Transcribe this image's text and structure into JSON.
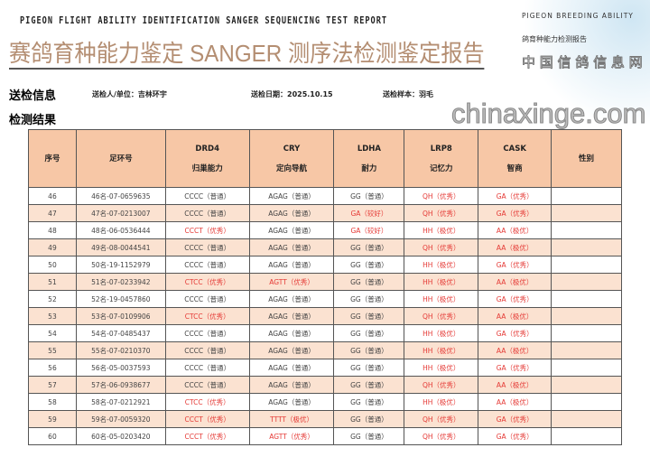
{
  "header": {
    "en_title": "PIGEON FLIGHT ABILITY IDENTIFICATION SANGER SEQUENCING TEST REPORT",
    "side_en": "PIGEON BREEDING ABILITY",
    "side_cn": "鸽育种能力检测报告",
    "title": "赛鸽育种能力鉴定 SANGER 测序法检测鉴定报告"
  },
  "info": {
    "heading": "送检信息",
    "submitter": "送检人/单位：吉林环宇",
    "date": "送检日期：2025.10.15",
    "sample": "送检样本：羽毛"
  },
  "results_heading": "检测结果",
  "table": {
    "headers": [
      {
        "top": "序号",
        "sub": ""
      },
      {
        "top": "足环号",
        "sub": ""
      },
      {
        "top": "DRD4",
        "sub": "归巢能力"
      },
      {
        "top": "CRY",
        "sub": "定向导航"
      },
      {
        "top": "LDHA",
        "sub": "耐力"
      },
      {
        "top": "LRP8",
        "sub": "记忆力"
      },
      {
        "top": "CASK",
        "sub": "智商"
      },
      {
        "top": "性别",
        "sub": ""
      }
    ],
    "rows": [
      [
        "46",
        "46名-07-0659635",
        "CCCC（普通）",
        "AGAG（普通）",
        "GG（普通）",
        "QH（优秀）",
        "GA（优秀）",
        ""
      ],
      [
        "47",
        "47名-07-0213007",
        "CCCC（普通）",
        "AGAG（普通）",
        "GA（较好）",
        "QH（优秀）",
        "GA（优秀）",
        ""
      ],
      [
        "48",
        "48名-06-0536444",
        "CCCT（优秀）",
        "AGAG（普通）",
        "GA（较好）",
        "HH（极优）",
        "AA（极优）",
        ""
      ],
      [
        "49",
        "49名-08-0044541",
        "CCCC（普通）",
        "AGAG（普通）",
        "GG（普通）",
        "QH（优秀）",
        "AA（极优）",
        ""
      ],
      [
        "50",
        "50名-19-1152979",
        "CCCC（普通）",
        "AGAG（普通）",
        "GG（普通）",
        "HH（极优）",
        "GA（优秀）",
        ""
      ],
      [
        "51",
        "51名-07-0233942",
        "CTCC（优秀）",
        "AGTT（优秀）",
        "GG（普通）",
        "HH（极优）",
        "AA（极优）",
        ""
      ],
      [
        "52",
        "52名-19-0457860",
        "CCCC（普通）",
        "AGAG（普通）",
        "GG（普通）",
        "HH（极优）",
        "GA（优秀）",
        ""
      ],
      [
        "53",
        "53名-07-0109906",
        "CTCC（优秀）",
        "AGAG（普通）",
        "GG（普通）",
        "QH（优秀）",
        "AA（极优）",
        ""
      ],
      [
        "54",
        "54名-07-0485437",
        "CCCC（普通）",
        "AGAG（普通）",
        "GG（普通）",
        "HH（极优）",
        "GA（优秀）",
        ""
      ],
      [
        "55",
        "55名-07-0210370",
        "CCCC（普通）",
        "AGAG（普通）",
        "GG（普通）",
        "HH（极优）",
        "AA（极优）",
        ""
      ],
      [
        "56",
        "56名-05-0037593",
        "CCCC（普通）",
        "AGAG（普通）",
        "GG（普通）",
        "HH（极优）",
        "GA（优秀）",
        ""
      ],
      [
        "57",
        "57名-06-0938677",
        "CCCC（普通）",
        "AGAG（普通）",
        "GG（普通）",
        "QH（优秀）",
        "AA（极优）",
        ""
      ],
      [
        "58",
        "58名-07-0212921",
        "CTCC（优秀）",
        "AGAG（普通）",
        "GG（普通）",
        "HH（极优）",
        "AA（极优）",
        ""
      ],
      [
        "59",
        "59名-07-0059320",
        "CCCT（优秀）",
        "TTTT（极优）",
        "GG（普通）",
        "QH（优秀）",
        "GA（优秀）",
        ""
      ],
      [
        "60",
        "60名-05-0203420",
        "CCCT（优秀）",
        "AGTT（优秀）",
        "GG（普通）",
        "QH（优秀）",
        "GA（优秀）",
        ""
      ]
    ]
  },
  "watermark": {
    "domain": "chinaxinge.com",
    "cn": "中 国 信 鸽 信 息 网"
  },
  "colors": {
    "header_bg": "#f7c7a6",
    "alt_row": "#fbe2d1",
    "highlight": "#e53935",
    "title": "#b48e72"
  }
}
